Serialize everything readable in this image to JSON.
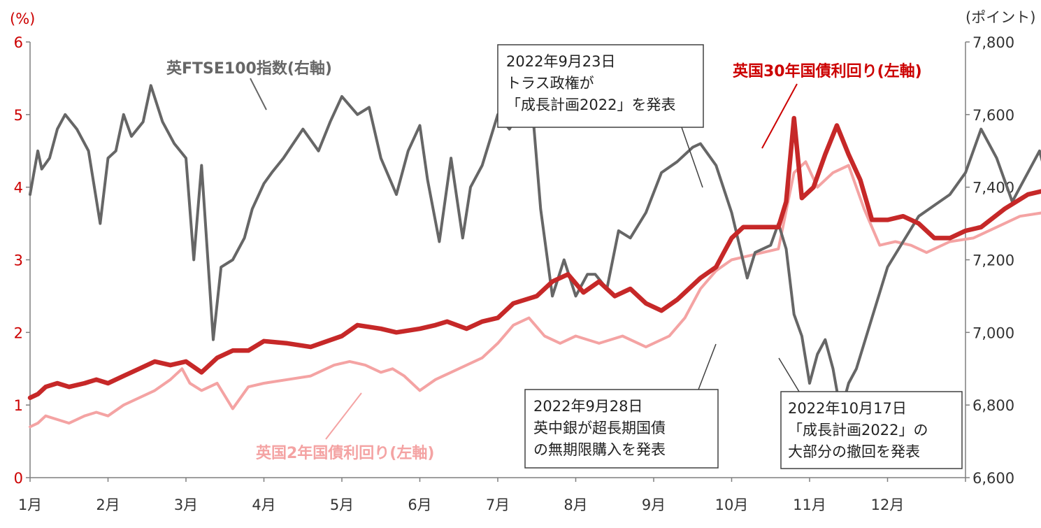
{
  "chart_data": {
    "type": "line",
    "left_axis_unit": "(%)",
    "right_axis_unit": "(ポイント)",
    "x_labels": [
      "1月",
      "2月",
      "3月",
      "4月",
      "5月",
      "6月",
      "7月",
      "8月",
      "9月",
      "10月",
      "11月",
      "12月"
    ],
    "ylim_left": [
      0,
      6
    ],
    "yticks_left": [
      "0",
      "1",
      "2",
      "3",
      "4",
      "5",
      "6"
    ],
    "ylim_right": [
      6600,
      7800
    ],
    "yticks_right": [
      "6,600",
      "6,800",
      "7,000",
      "7,200",
      "7,400",
      "7,600",
      "7,800"
    ],
    "grid": false,
    "colors": {
      "uk30": "#c62828",
      "uk2": "#f4a3a3",
      "ftse": "#666666",
      "axis_left_text": "#cc0000",
      "annotation": "#404040"
    },
    "series": [
      {
        "key": "uk30",
        "name": "英国30年国債利回り(左軸)",
        "axis": "left",
        "x": [
          0,
          0.1,
          0.2,
          0.35,
          0.5,
          0.7,
          0.85,
          1.0,
          1.2,
          1.4,
          1.6,
          1.8,
          2.0,
          2.2,
          2.4,
          2.6,
          2.8,
          3.0,
          3.3,
          3.6,
          4.0,
          4.2,
          4.5,
          4.7,
          5.0,
          5.2,
          5.35,
          5.6,
          5.8,
          6.0,
          6.2,
          6.5,
          6.7,
          6.9,
          7.1,
          7.3,
          7.5,
          7.7,
          7.9,
          8.1,
          8.3,
          8.6,
          8.8,
          8.9,
          9.0,
          9.15,
          9.3,
          9.5,
          9.6,
          9.7,
          9.8,
          9.9,
          10.05,
          10.2,
          10.35,
          10.5,
          10.65,
          10.8,
          11.0,
          11.2,
          11.4,
          11.6,
          11.8,
          12.0,
          12.2,
          12.5,
          12.8,
          13.0
        ],
        "values": [
          1.1,
          1.15,
          1.25,
          1.3,
          1.25,
          1.3,
          1.35,
          1.3,
          1.4,
          1.5,
          1.6,
          1.55,
          1.6,
          1.45,
          1.65,
          1.75,
          1.75,
          1.88,
          1.85,
          1.8,
          1.95,
          2.1,
          2.05,
          2.0,
          2.05,
          2.1,
          2.15,
          2.05,
          2.15,
          2.2,
          2.4,
          2.5,
          2.7,
          2.8,
          2.55,
          2.7,
          2.5,
          2.6,
          2.4,
          2.3,
          2.45,
          2.75,
          2.9,
          3.1,
          3.3,
          3.45,
          3.45,
          3.45,
          3.45,
          3.8,
          4.95,
          3.85,
          4.0,
          4.45,
          4.85,
          4.45,
          4.1,
          3.55,
          3.55,
          3.6,
          3.5,
          3.3,
          3.3,
          3.4,
          3.45,
          3.7,
          3.9,
          3.95
        ]
      },
      {
        "key": "uk2",
        "name": "英国2年国債利回り(左軸)",
        "axis": "left",
        "x": [
          0,
          0.1,
          0.2,
          0.35,
          0.5,
          0.7,
          0.85,
          1.0,
          1.2,
          1.4,
          1.6,
          1.8,
          1.95,
          2.05,
          2.2,
          2.4,
          2.6,
          2.8,
          3.0,
          3.3,
          3.6,
          3.9,
          4.1,
          4.3,
          4.5,
          4.65,
          4.8,
          5.0,
          5.2,
          5.4,
          5.6,
          5.8,
          6.0,
          6.2,
          6.4,
          6.6,
          6.8,
          7.0,
          7.3,
          7.6,
          7.9,
          8.2,
          8.4,
          8.6,
          8.8,
          9.0,
          9.2,
          9.4,
          9.6,
          9.8,
          9.95,
          10.1,
          10.3,
          10.5,
          10.7,
          10.9,
          11.1,
          11.3,
          11.5,
          11.8,
          12.1,
          12.4,
          12.7,
          13.0
        ],
        "values": [
          0.7,
          0.75,
          0.85,
          0.8,
          0.75,
          0.85,
          0.9,
          0.85,
          1.0,
          1.1,
          1.2,
          1.35,
          1.5,
          1.3,
          1.2,
          1.3,
          0.95,
          1.25,
          1.3,
          1.35,
          1.4,
          1.55,
          1.6,
          1.55,
          1.45,
          1.5,
          1.4,
          1.2,
          1.35,
          1.45,
          1.55,
          1.65,
          1.85,
          2.1,
          2.2,
          1.95,
          1.85,
          1.95,
          1.85,
          1.95,
          1.8,
          1.95,
          2.2,
          2.6,
          2.85,
          3.0,
          3.05,
          3.1,
          3.15,
          4.2,
          4.35,
          4.0,
          4.2,
          4.3,
          3.7,
          3.2,
          3.25,
          3.2,
          3.1,
          3.25,
          3.3,
          3.45,
          3.6,
          3.65
        ]
      },
      {
        "key": "ftse",
        "name": "英FTSE100指数(右軸)",
        "axis": "right",
        "x": [
          0,
          0.1,
          0.15,
          0.25,
          0.35,
          0.45,
          0.6,
          0.75,
          0.9,
          1.0,
          1.1,
          1.2,
          1.3,
          1.45,
          1.55,
          1.7,
          1.85,
          2.0,
          2.1,
          2.2,
          2.35,
          2.45,
          2.6,
          2.75,
          2.85,
          3.0,
          3.1,
          3.25,
          3.5,
          3.7,
          3.85,
          4.0,
          4.2,
          4.35,
          4.5,
          4.7,
          4.85,
          5.0,
          5.1,
          5.25,
          5.4,
          5.55,
          5.65,
          5.8,
          6.0,
          6.15,
          6.3,
          6.45,
          6.55,
          6.7,
          6.85,
          7.0,
          7.15,
          7.25,
          7.4,
          7.55,
          7.7,
          7.9,
          8.1,
          8.3,
          8.5,
          8.6,
          8.8,
          9.0,
          9.2,
          9.3,
          9.5,
          9.6,
          9.7,
          9.8,
          9.9,
          10.0,
          10.1,
          10.2,
          10.3,
          10.4,
          10.5,
          10.6,
          10.8,
          11.0,
          11.2,
          11.4,
          11.6,
          11.8,
          12.0,
          12.2,
          12.4,
          12.6,
          12.8,
          12.95,
          13.0
        ],
        "values": [
          7380,
          7500,
          7450,
          7480,
          7560,
          7600,
          7560,
          7500,
          7300,
          7480,
          7500,
          7600,
          7540,
          7580,
          7680,
          7580,
          7520,
          7480,
          7200,
          7460,
          6980,
          7180,
          7200,
          7260,
          7340,
          7410,
          7440,
          7480,
          7560,
          7500,
          7580,
          7650,
          7600,
          7620,
          7480,
          7380,
          7500,
          7570,
          7420,
          7250,
          7480,
          7260,
          7400,
          7460,
          7600,
          7560,
          7620,
          7600,
          7340,
          7100,
          7200,
          7100,
          7160,
          7160,
          7120,
          7280,
          7260,
          7330,
          7440,
          7470,
          7510,
          7520,
          7460,
          7330,
          7150,
          7220,
          7240,
          7300,
          7230,
          7050,
          6990,
          6860,
          6940,
          6980,
          6900,
          6780,
          6860,
          6900,
          7040,
          7180,
          7250,
          7320,
          7350,
          7380,
          7440,
          7560,
          7480,
          7360,
          7440,
          7500,
          7460
        ]
      }
    ],
    "annotations": [
      "2022年9月23日\nトラス政権が\n「成長計画2022」を発表",
      "2022年9月28日\n英中銀が超長期国債\nの無期限購入を発表",
      "2022年10月17日\n「成長計画2022」の\n大部分の撤回を発表"
    ]
  }
}
